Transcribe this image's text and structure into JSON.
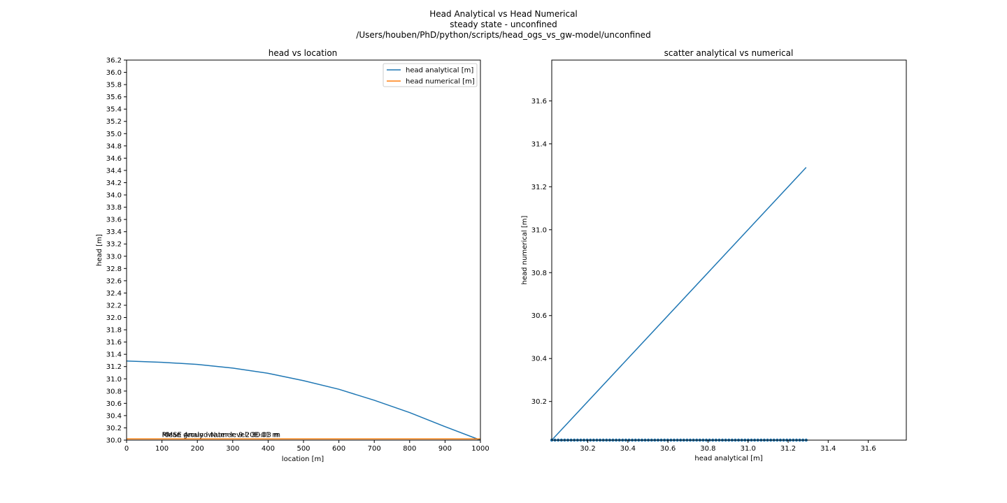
{
  "figure": {
    "title_lines": [
      "Head Analytical vs Head Numerical",
      "steady state - unconfined",
      "/Users/houben/PhD/python/scripts/head_ogs_vs_gw-model/unconfined"
    ]
  },
  "chart_data": [
    {
      "type": "line",
      "title": "head vs location",
      "xlabel": "location [m]",
      "ylabel": "head [m]",
      "xlim": [
        0,
        1000
      ],
      "ylim": [
        30.0,
        36.2
      ],
      "xticks": [
        0,
        100,
        200,
        300,
        400,
        500,
        600,
        700,
        800,
        900,
        1000
      ],
      "yticks": [
        30.0,
        30.2,
        30.4,
        30.6,
        30.8,
        31.0,
        31.2,
        31.4,
        31.6,
        31.8,
        32.0,
        32.2,
        32.4,
        32.6,
        32.8,
        33.0,
        33.2,
        33.4,
        33.6,
        33.8,
        34.0,
        34.2,
        34.4,
        34.6,
        34.8,
        35.0,
        35.2,
        35.4,
        35.6,
        35.8,
        36.0,
        36.2
      ],
      "grid": false,
      "legend_position": "top-right",
      "series": [
        {
          "name": "head analytical [m]",
          "color": "#1f77b4",
          "x": [
            0,
            100,
            200,
            300,
            400,
            500,
            600,
            700,
            800,
            900,
            1000
          ],
          "y": [
            31.29,
            31.27,
            31.235,
            31.175,
            31.09,
            30.97,
            30.83,
            30.65,
            30.45,
            30.22,
            30.0
          ]
        },
        {
          "name": "head numerical [m]",
          "color": "#ff7f0e",
          "x": [
            0,
            1000
          ],
          "y": [
            30.02,
            30.02
          ]
        }
      ],
      "annotations": [
        {
          "text": "RMSE Analy - Numer: 9.20E-01 m",
          "x": 100,
          "y": 30.03
        },
        {
          "text": "Mean groundwater level: 30.03 m",
          "x": 100,
          "y": 30.03
        }
      ]
    },
    {
      "type": "scatter",
      "title": "scatter analytical vs numerical",
      "xlabel": "head analytical [m]",
      "ylabel": "head numerical [m]",
      "xlim": [
        30.02,
        31.79
      ],
      "ylim": [
        30.02,
        31.79
      ],
      "xticks": [
        30.2,
        30.4,
        30.6,
        30.8,
        31.0,
        31.2,
        31.4,
        31.6
      ],
      "yticks": [
        30.2,
        30.4,
        30.6,
        30.8,
        31.0,
        31.2,
        31.4,
        31.6
      ],
      "grid": false,
      "color": "#1f77b4",
      "identity_line": {
        "x": [
          30.02,
          31.29
        ],
        "y": [
          30.02,
          31.29
        ]
      },
      "points": {
        "y": 30.02,
        "x_start": 30.02,
        "x_end": 31.29,
        "count": 80
      }
    }
  ]
}
